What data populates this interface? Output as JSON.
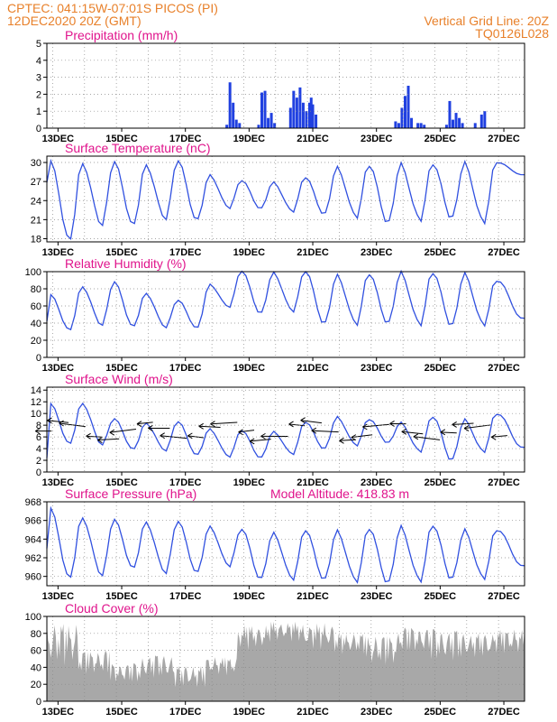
{
  "header": {
    "line1_left": "CPTEC:   041:15W-07:01S   PICOS (PI)",
    "line2_left": "12DEC2020  20Z (GMT)",
    "line1_right": "Vertical Grid Line: 20Z",
    "line2_right": "TQ0126L028"
  },
  "colors": {
    "line": "#3050e0",
    "bar": "#2040e0",
    "cloud": "#a8a8a8",
    "header": "#e8802a",
    "title": "#e0148c"
  },
  "x_ticks": [
    "13DEC",
    "15DEC",
    "17DEC",
    "19DEC",
    "21DEC",
    "23DEC",
    "25DEC",
    "27DEC"
  ],
  "chart_data": [
    {
      "id": "precip",
      "type": "bar",
      "title": "Precipitation (mm/h)",
      "ylim": [
        0,
        5
      ],
      "yticks": [
        0,
        1,
        2,
        3,
        4,
        5
      ],
      "x_days": [
        5.3,
        5.4,
        5.5,
        5.6,
        5.7,
        6.3,
        6.4,
        6.5,
        6.6,
        6.7,
        6.8,
        7.3,
        7.4,
        7.5,
        7.6,
        7.7,
        7.8,
        7.9,
        7.95,
        8.0,
        8.1,
        10.6,
        10.7,
        10.8,
        10.9,
        11.0,
        11.1,
        11.3,
        11.4,
        11.5,
        12.2,
        12.3,
        12.4,
        12.5,
        12.6,
        12.7,
        13.1,
        13.3,
        13.4
      ],
      "values": [
        0.2,
        2.7,
        1.5,
        0.5,
        0.3,
        0.2,
        2.1,
        2.2,
        0.6,
        0.9,
        0.3,
        1.2,
        2.2,
        1.8,
        2.4,
        1.5,
        1.0,
        1.5,
        1.8,
        1.4,
        0.8,
        0.4,
        0.3,
        1.2,
        1.9,
        2.5,
        0.6,
        0.3,
        0.3,
        0.2,
        0.2,
        1.6,
        0.5,
        0.9,
        0.6,
        0.3,
        0.3,
        0.8,
        1.0
      ]
    },
    {
      "id": "temp",
      "type": "line",
      "title": "Surface Temperature (nC)",
      "ylim": [
        17.5,
        31
      ],
      "yticks": [
        18,
        21,
        24,
        27,
        30
      ],
      "min_values": [
        18.2,
        18.1,
        19.8,
        20.4,
        20.8,
        21.1,
        22.7,
        22.8,
        22.2,
        21.9,
        21.3,
        20.5,
        20.9,
        21.2,
        20.6
      ],
      "max_values": [
        29.9,
        30.2,
        29.9,
        29.9,
        30.1,
        28.2,
        27.1,
        27.0,
        27.6,
        29.4,
        29.5,
        29.9,
        29.8,
        30.0,
        30.0
      ],
      "first_value": 26.8,
      "last_value": 28.0
    },
    {
      "id": "rh",
      "type": "line",
      "title": "Relative Humidity (%)",
      "ylim": [
        0,
        100
      ],
      "yticks": [
        0,
        20,
        40,
        60,
        80,
        100
      ],
      "min_values": [
        30,
        33,
        36,
        37,
        34,
        35,
        58,
        52,
        53,
        40,
        38,
        40,
        38,
        37,
        38
      ],
      "max_values": [
        72,
        84,
        87,
        76,
        66,
        86,
        100,
        100,
        100,
        97,
        97,
        100,
        99,
        98,
        90
      ],
      "first_value": 42,
      "last_value": 44
    },
    {
      "id": "wind",
      "type": "line",
      "title": "Surface Wind (m/s)",
      "ylim": [
        0,
        14.5
      ],
      "yticks": [
        0,
        2,
        4,
        6,
        8,
        10,
        12,
        14
      ],
      "min_values": [
        2.5,
        5.0,
        4.5,
        4.0,
        3.5,
        3.0,
        2.5,
        2.5,
        3.0,
        4.0,
        4.5,
        5.0,
        3.5,
        2.0,
        3.5
      ],
      "max_values": [
        11.5,
        12.0,
        9.0,
        8.5,
        8.5,
        7.5,
        7.0,
        7.0,
        8.5,
        9.5,
        9.0,
        8.5,
        9.5,
        9.0,
        10.0
      ],
      "first_value": 2.4,
      "last_value": 4.0
    },
    {
      "id": "pres",
      "type": "line",
      "title": "Surface Pressure (hPa)",
      "annotation": "Model Altitude: 418.83 m",
      "ylim": [
        959,
        968
      ],
      "yticks": [
        960,
        962,
        964,
        966,
        968
      ],
      "min_values": [
        962.5,
        960.0,
        959.9,
        961.0,
        960.2,
        960.5,
        961.0,
        959.8,
        959.6,
        959.7,
        959.4,
        959.3,
        959.5,
        959.7,
        959.8
      ],
      "max_values": [
        967.1,
        966.5,
        966.0,
        966.0,
        965.8,
        965.5,
        965.0,
        964.8,
        964.9,
        965.0,
        965.1,
        965.4,
        965.5,
        965.0,
        965.0
      ],
      "first_value": 963.0,
      "last_value": 961.0
    },
    {
      "id": "cloud",
      "type": "area",
      "title": "Cloud Cover (%)",
      "ylim": [
        0,
        100
      ],
      "yticks": [
        0,
        20,
        40,
        60,
        80,
        100
      ],
      "daily_base": [
        92,
        60,
        45,
        55,
        42,
        52,
        90,
        94,
        92,
        80,
        78,
        88,
        85,
        80,
        85
      ],
      "daily_low": [
        40,
        30,
        20,
        25,
        15,
        30,
        60,
        70,
        60,
        55,
        40,
        55,
        45,
        50,
        55
      ]
    }
  ]
}
